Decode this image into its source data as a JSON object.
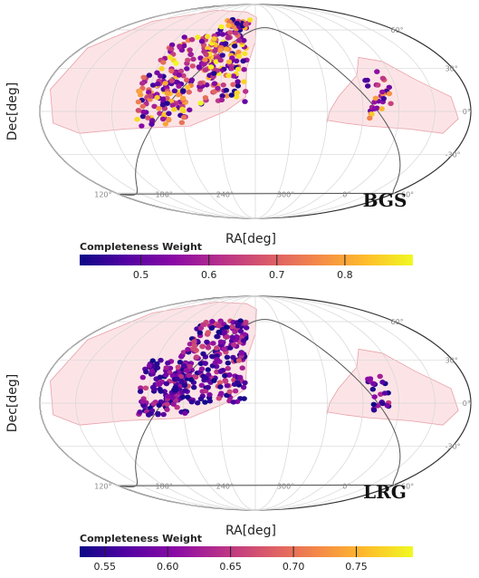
{
  "chart_data": [
    {
      "type": "scatter",
      "projection": "Mollweide (equal-area, all-sky)",
      "survey_label": "BGS",
      "xlabel": "RA[deg]",
      "ylabel": "Dec[deg]",
      "ra_ticks": [
        "120°",
        "180°",
        "240°",
        "300°",
        "0°",
        "60°"
      ],
      "dec_ticks": [
        "60°",
        "30°",
        "0°",
        "-30°"
      ],
      "colorbar": {
        "title": "Completeness Weight",
        "range": [
          0.41,
          0.9
        ],
        "ticks": [
          "0.5",
          "0.6",
          "0.7",
          "0.8"
        ],
        "colormap": "plasma"
      },
      "grid": true,
      "footprint_color": "#fce4e6",
      "footprint_edge": "#e8a0a8",
      "clusters": [
        {
          "ra_range": [
            222,
            262
          ],
          "dec_range": [
            5,
            70
          ],
          "count": 170,
          "weight_range": [
            0.42,
            0.9
          ]
        },
        {
          "ra_range": [
            170,
            215
          ],
          "dec_range": [
            -10,
            25
          ],
          "count": 120,
          "weight_range": [
            0.42,
            0.88
          ]
        },
        {
          "ra_range": [
            180,
            225
          ],
          "dec_range": [
            25,
            55
          ],
          "count": 60,
          "weight_range": [
            0.5,
            0.9
          ]
        },
        {
          "ra_range": [
            5,
            25
          ],
          "dec_range": [
            -5,
            30
          ],
          "count": 30,
          "weight_range": [
            0.45,
            0.85
          ]
        }
      ]
    },
    {
      "type": "scatter",
      "projection": "Mollweide (equal-area, all-sky)",
      "survey_label": "LRG",
      "xlabel": "RA[deg]",
      "ylabel": "Dec[deg]",
      "ra_ticks": [
        "120°",
        "180°",
        "240°",
        "300°",
        "0°",
        "60°"
      ],
      "dec_ticks": [
        "60°",
        "30°",
        "0°",
        "-30°"
      ],
      "colorbar": {
        "title": "Completeness Weight",
        "range": [
          0.53,
          0.795
        ],
        "ticks": [
          "0.55",
          "0.60",
          "0.65",
          "0.70",
          "0.75"
        ],
        "colormap": "plasma"
      },
      "grid": true,
      "footprint_color": "#fce4e6",
      "footprint_edge": "#e8a0a8",
      "clusters": [
        {
          "ra_range": [
            200,
            262
          ],
          "dec_range": [
            0,
            62
          ],
          "count": 260,
          "weight_range": [
            0.53,
            0.68
          ]
        },
        {
          "ra_range": [
            172,
            215
          ],
          "dec_range": [
            -8,
            30
          ],
          "count": 120,
          "weight_range": [
            0.53,
            0.66
          ]
        },
        {
          "ra_range": [
            5,
            22
          ],
          "dec_range": [
            -5,
            20
          ],
          "count": 25,
          "weight_range": [
            0.53,
            0.65
          ]
        }
      ]
    }
  ]
}
